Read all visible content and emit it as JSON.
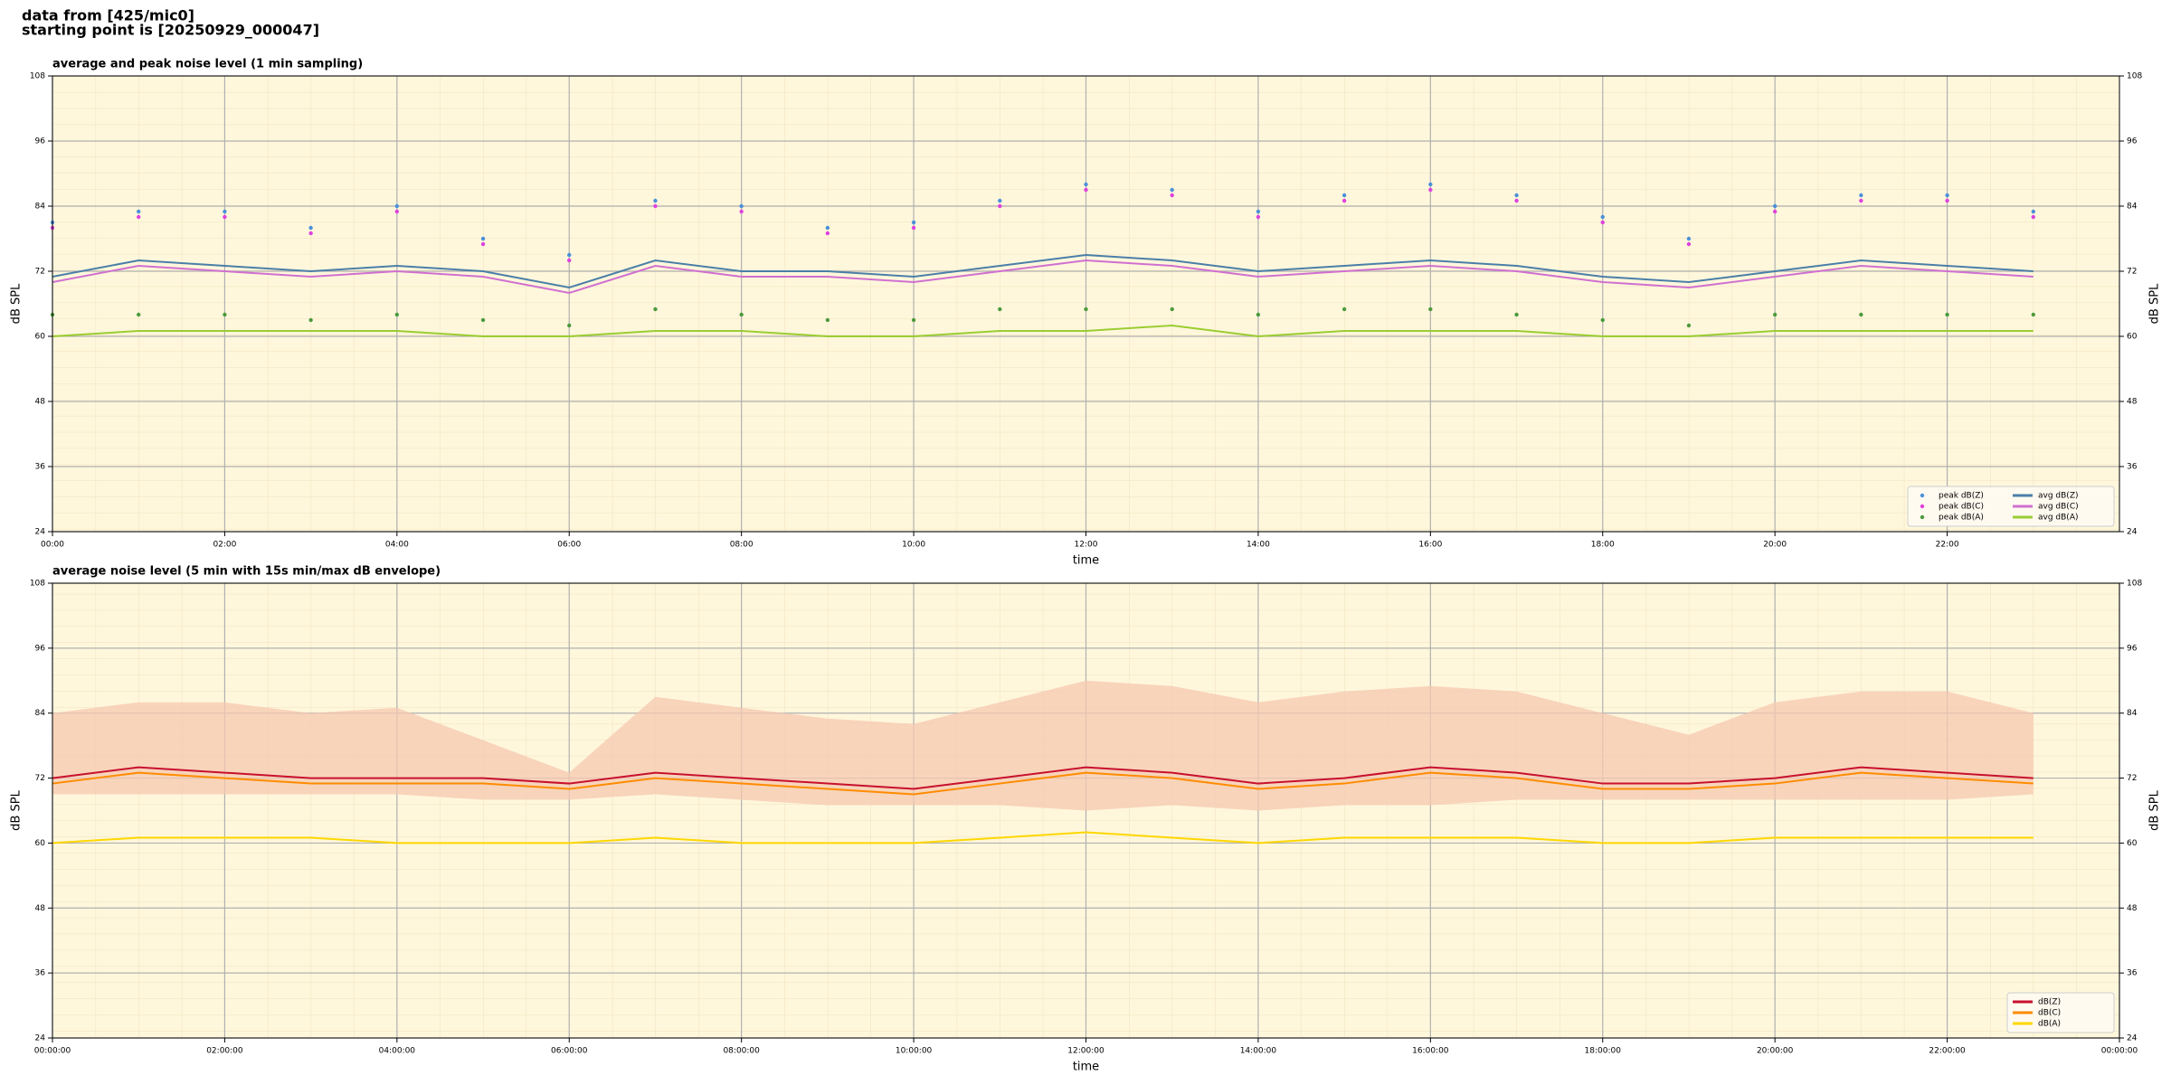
{
  "header": {
    "line1": "data from [425/mic0]",
    "line2": "starting point is [20250929_000047]"
  },
  "chart_data": [
    {
      "type": "line",
      "title": "average and peak noise level (1 min sampling)",
      "xlabel": "time",
      "ylabel": "dB SPL",
      "x": [
        0,
        1,
        2,
        3,
        4,
        5,
        6,
        7,
        8,
        9,
        10,
        11,
        12,
        13,
        14,
        15,
        16,
        17,
        18,
        19,
        20,
        21,
        22,
        23
      ],
      "xlim": [
        0,
        24
      ],
      "ylim": [
        24,
        108
      ],
      "xticks": [
        {
          "value": 0,
          "label": "00:00"
        },
        {
          "value": 2,
          "label": "02:00"
        },
        {
          "value": 4,
          "label": "04:00"
        },
        {
          "value": 6,
          "label": "06:00"
        },
        {
          "value": 8,
          "label": "08:00"
        },
        {
          "value": 10,
          "label": "10:00"
        },
        {
          "value": 12,
          "label": "12:00"
        },
        {
          "value": 14,
          "label": "14:00"
        },
        {
          "value": 16,
          "label": "16:00"
        },
        {
          "value": 18,
          "label": "18:00"
        },
        {
          "value": 20,
          "label": "20:00"
        },
        {
          "value": 22,
          "label": "22:00"
        }
      ],
      "yticks": [
        24,
        36,
        48,
        60,
        72,
        84,
        96,
        108
      ],
      "grid": true,
      "legend": "lower right",
      "series": [
        {
          "name": "peak dB(Z)",
          "mode": "markers",
          "color": "#4a90d9",
          "values": [
            81,
            83,
            83,
            80,
            84,
            78,
            75,
            85,
            84,
            80,
            81,
            85,
            88,
            87,
            83,
            86,
            88,
            86,
            82,
            78,
            84,
            86,
            86,
            83
          ]
        },
        {
          "name": "peak dB(C)",
          "mode": "markers",
          "color": "#e040e0",
          "values": [
            80,
            82,
            82,
            79,
            83,
            77,
            74,
            84,
            83,
            79,
            80,
            84,
            87,
            86,
            82,
            85,
            87,
            85,
            81,
            77,
            83,
            85,
            85,
            82
          ]
        },
        {
          "name": "peak dB(A)",
          "mode": "markers",
          "color": "#4c9a3c",
          "values": [
            64,
            64,
            64,
            63,
            64,
            63,
            62,
            65,
            64,
            63,
            63,
            65,
            65,
            65,
            64,
            65,
            65,
            64,
            63,
            62,
            64,
            64,
            64,
            64
          ]
        },
        {
          "name": "avg dB(Z)",
          "mode": "lines",
          "color": "#4a7fa8",
          "values": [
            71,
            74,
            73,
            72,
            73,
            72,
            69,
            74,
            72,
            72,
            71,
            73,
            75,
            74,
            72,
            73,
            74,
            73,
            71,
            70,
            72,
            74,
            73,
            72
          ]
        },
        {
          "name": "avg dB(C)",
          "mode": "lines",
          "color": "#d070d0",
          "values": [
            70,
            73,
            72,
            71,
            72,
            71,
            68,
            73,
            71,
            71,
            70,
            72,
            74,
            73,
            71,
            72,
            73,
            72,
            70,
            69,
            71,
            73,
            72,
            71
          ]
        },
        {
          "name": "avg dB(A)",
          "mode": "lines",
          "color": "#9acd32",
          "values": [
            60,
            61,
            61,
            61,
            61,
            60,
            60,
            61,
            61,
            60,
            60,
            61,
            61,
            62,
            60,
            61,
            61,
            61,
            60,
            60,
            61,
            61,
            61,
            61
          ]
        }
      ]
    },
    {
      "type": "line",
      "title": "average noise level (5 min with 15s min/max dB envelope)",
      "xlabel": "time",
      "ylabel": "dB SPL",
      "x": [
        0,
        1,
        2,
        3,
        4,
        5,
        6,
        7,
        8,
        9,
        10,
        11,
        12,
        13,
        14,
        15,
        16,
        17,
        18,
        19,
        20,
        21,
        22,
        23
      ],
      "xlim": [
        0,
        24
      ],
      "ylim": [
        24,
        108
      ],
      "xticks": [
        {
          "value": 0,
          "label": "00:00:00"
        },
        {
          "value": 2,
          "label": "02:00:00"
        },
        {
          "value": 4,
          "label": "04:00:00"
        },
        {
          "value": 6,
          "label": "06:00:00"
        },
        {
          "value": 8,
          "label": "08:00:00"
        },
        {
          "value": 10,
          "label": "10:00:00"
        },
        {
          "value": 12,
          "label": "12:00:00"
        },
        {
          "value": 14,
          "label": "14:00:00"
        },
        {
          "value": 16,
          "label": "16:00:00"
        },
        {
          "value": 18,
          "label": "18:00:00"
        },
        {
          "value": 20,
          "label": "20:00:00"
        },
        {
          "value": 22,
          "label": "22:00:00"
        },
        {
          "value": 24,
          "label": "00:00:00"
        }
      ],
      "yticks": [
        24,
        36,
        48,
        60,
        72,
        84,
        96,
        108
      ],
      "grid": true,
      "legend": "lower right",
      "envelope": {
        "color": "#f5c8b0",
        "max": [
          84,
          86,
          86,
          84,
          85,
          79,
          73,
          87,
          85,
          83,
          82,
          86,
          90,
          89,
          86,
          88,
          89,
          88,
          84,
          80,
          86,
          88,
          88,
          84
        ],
        "min": [
          69,
          69,
          69,
          69,
          69,
          68,
          68,
          69,
          68,
          67,
          67,
          67,
          66,
          67,
          66,
          67,
          67,
          68,
          68,
          68,
          68,
          68,
          68,
          69
        ]
      },
      "series": [
        {
          "name": "dB(Z)",
          "mode": "lines",
          "color": "#c8102e",
          "values": [
            72,
            74,
            73,
            72,
            72,
            72,
            71,
            73,
            72,
            71,
            70,
            72,
            74,
            73,
            71,
            72,
            74,
            73,
            71,
            71,
            72,
            74,
            73,
            72
          ]
        },
        {
          "name": "dB(C)",
          "mode": "lines",
          "color": "#ff8c00",
          "values": [
            71,
            73,
            72,
            71,
            71,
            71,
            70,
            72,
            71,
            70,
            69,
            71,
            73,
            72,
            70,
            71,
            73,
            72,
            70,
            70,
            71,
            73,
            72,
            71
          ]
        },
        {
          "name": "dB(A)",
          "mode": "lines",
          "color": "#ffd700",
          "values": [
            60,
            61,
            61,
            61,
            60,
            60,
            60,
            61,
            60,
            60,
            60,
            61,
            62,
            61,
            60,
            61,
            61,
            61,
            60,
            60,
            61,
            61,
            61,
            61
          ]
        }
      ]
    }
  ]
}
